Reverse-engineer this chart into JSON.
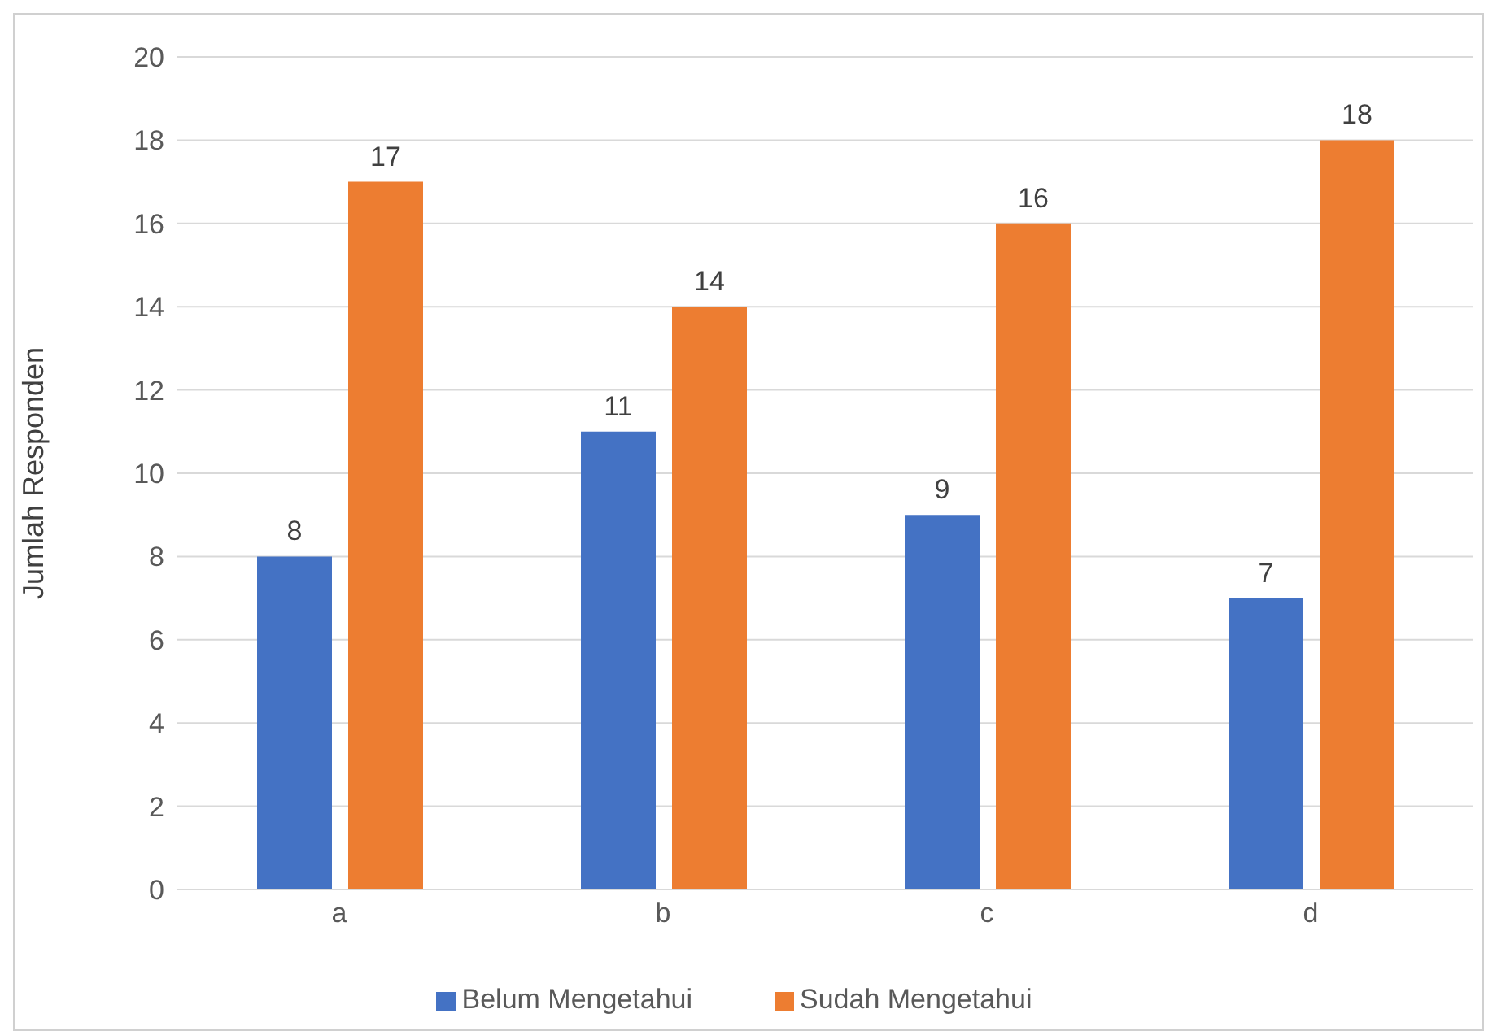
{
  "chart_data": {
    "type": "bar",
    "ylabel": "Jumlah Responden",
    "categories": [
      "a",
      "b",
      "c",
      "d"
    ],
    "series": [
      {
        "name": "Belum Mengetahui",
        "color": "#4472c4",
        "values": [
          8,
          11,
          9,
          7
        ]
      },
      {
        "name": "Sudah Mengetahui",
        "color": "#ed7d31",
        "values": [
          17,
          14,
          16,
          18
        ]
      }
    ],
    "ylim": [
      0,
      20
    ],
    "yticks": [
      0,
      2,
      4,
      6,
      8,
      10,
      12,
      14,
      16,
      18,
      20
    ],
    "grid": "y",
    "legend": "bottom",
    "data_labels": true
  }
}
